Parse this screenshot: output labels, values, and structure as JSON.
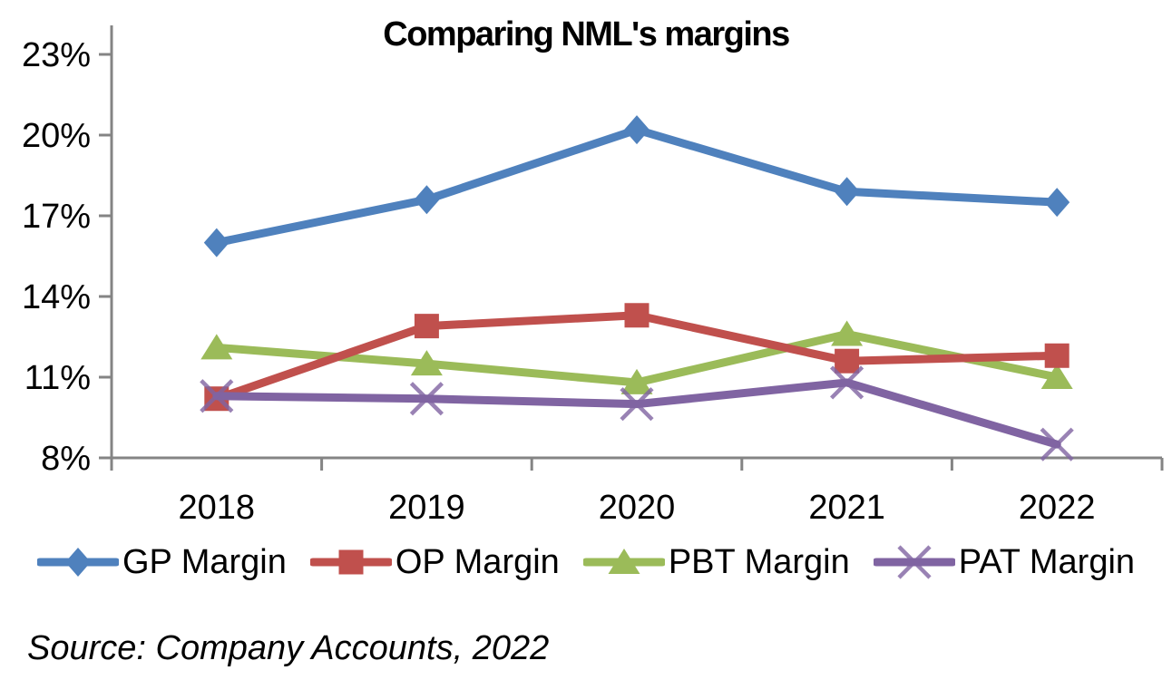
{
  "title": "Comparing NML's margins",
  "source_note": "Source: Company Accounts, 2022",
  "colors": {
    "axis": "#848484",
    "text": "#000000",
    "background": "#FFFFFF"
  },
  "chart_data": {
    "type": "line",
    "title": "Comparing NML's margins",
    "categories": [
      "2018",
      "2019",
      "2020",
      "2021",
      "2022"
    ],
    "series": [
      {
        "name": "GP Margin",
        "marker": "diamond",
        "color": "#4F81BD",
        "values": [
          16.0,
          17.6,
          20.2,
          17.9,
          17.5
        ]
      },
      {
        "name": "OP Margin",
        "marker": "square",
        "color": "#C0504D",
        "values": [
          10.2,
          12.9,
          13.3,
          11.6,
          11.8
        ]
      },
      {
        "name": "PBT Margin",
        "marker": "triangle",
        "color": "#9BBB59",
        "values": [
          12.1,
          11.5,
          10.8,
          12.6,
          11.0
        ]
      },
      {
        "name": "PAT Margin",
        "marker": "x",
        "color": "#8064A2",
        "values": [
          10.3,
          10.2,
          10.0,
          10.8,
          8.5
        ]
      }
    ],
    "ylim": [
      8,
      23
    ],
    "yticks": [
      8,
      11,
      14,
      17,
      20,
      23
    ],
    "ytick_labels": [
      "8%",
      "11%",
      "14%",
      "17%",
      "20%",
      "23%"
    ],
    "xlabel": "",
    "ylabel": "",
    "grid": false,
    "legend_position": "bottom",
    "annotations": [
      "Source: Company Accounts, 2022"
    ]
  }
}
